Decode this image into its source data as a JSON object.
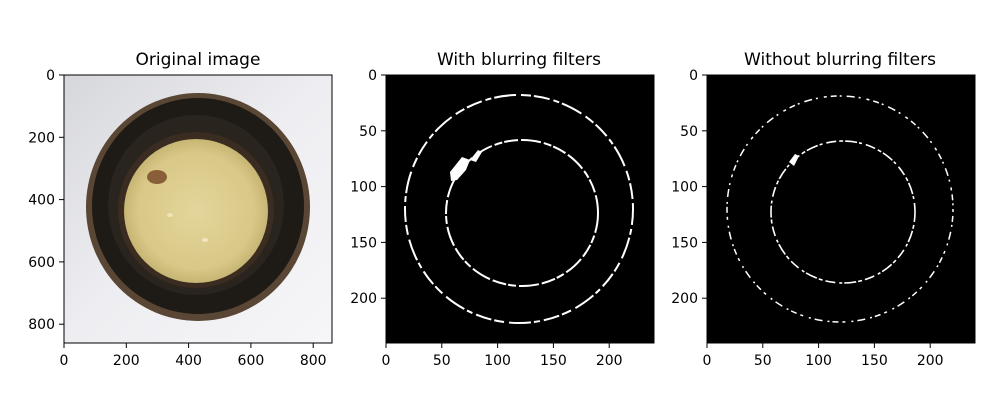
{
  "panels": [
    {
      "title": "Original image",
      "x_ticks": [
        "0",
        "200",
        "400",
        "600",
        "800"
      ],
      "y_ticks": [
        "0",
        "200",
        "400",
        "600",
        "800"
      ],
      "x_range": [
        0,
        860
      ],
      "y_range": [
        860,
        0
      ],
      "content": "photo-petri-dish"
    },
    {
      "title": "With blurring filters",
      "x_ticks": [
        "0",
        "50",
        "100",
        "150",
        "200"
      ],
      "y_ticks": [
        "0",
        "50",
        "100",
        "150",
        "200"
      ],
      "x_range": [
        0,
        240
      ],
      "y_range": [
        240,
        0
      ],
      "content": "edge-map-blurred"
    },
    {
      "title": "Without blurring filters",
      "x_ticks": [
        "0",
        "50",
        "100",
        "150",
        "200"
      ],
      "y_ticks": [
        "0",
        "50",
        "100",
        "150",
        "200"
      ],
      "x_range": [
        0,
        240
      ],
      "y_range": [
        240,
        0
      ],
      "content": "edge-map-unblurred"
    }
  ],
  "colors": {
    "background": "#e6e6ea",
    "rim": "#1e1a16",
    "dish_fill": "#dccb8a",
    "edge": "#ffffff",
    "mask": "#000000"
  }
}
